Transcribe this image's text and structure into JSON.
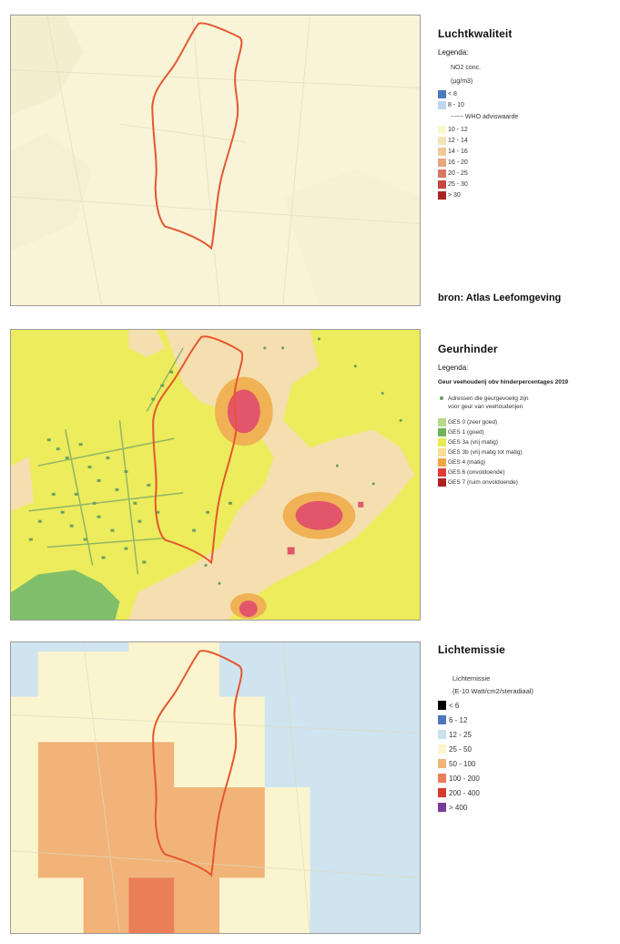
{
  "air_quality": {
    "title": "Luchtkwaliteit",
    "legend_label": "Legenda:",
    "legend_subtitle_1": "NO2 conc.",
    "legend_subtitle_2": "(µg/m3)",
    "who_note": "------ WHO adviswaarde",
    "classes": [
      {
        "label": "< 8",
        "color": "#4b7bbf"
      },
      {
        "label": "8 - 10",
        "color": "#bcd7ee"
      },
      {
        "label": "10 - 12",
        "color": "#fbf6cf"
      },
      {
        "label": "12 - 14",
        "color": "#f5e4b8"
      },
      {
        "label": "14 - 16",
        "color": "#f0c897"
      },
      {
        "label": "16 - 20",
        "color": "#e8a57e"
      },
      {
        "label": "20 - 25",
        "color": "#d87762"
      },
      {
        "label": "25 - 30",
        "color": "#c5473f"
      },
      {
        "label": "> 30",
        "color": "#a82525"
      }
    ]
  },
  "source": "bron: Atlas Leefomgeving",
  "odour": {
    "title": "Geurhinder",
    "legend_label": "Legenda:",
    "legend_subtitle": "Geur veehouderij obv hinderpercentages 2019",
    "dot_label_1": "Adressen die geurgevoelig zijn",
    "dot_label_2": "voor geur van veehouderijen",
    "classes": [
      {
        "label": "GES 0 (zeer goed)",
        "color": "#b6da8a"
      },
      {
        "label": "GES 1 (goed)",
        "color": "#6fb45a"
      },
      {
        "label": "GES 3a (vrij matig)",
        "color": "#eaea55"
      },
      {
        "label": "GES 3b (vrij matig tot matig)",
        "color": "#f7dc96"
      },
      {
        "label": "GES 4 (matig)",
        "color": "#f0a640"
      },
      {
        "label": "GES 6 (onvoldoende)",
        "color": "#e03a3a"
      },
      {
        "label": "GES 7 (ruim onvoldoende)",
        "color": "#b02020"
      }
    ]
  },
  "light": {
    "title": "Lichtemissie",
    "legend_subtitle_1": "Lichtemissie",
    "legend_subtitle_2": "(E-10 Watt/cm2/steradiaal)",
    "classes": [
      {
        "label": "< 6",
        "color": "#000000"
      },
      {
        "label": "6 - 12",
        "color": "#4e76be"
      },
      {
        "label": "12 - 25",
        "color": "#c9e3ef"
      },
      {
        "label": "25 - 50",
        "color": "#fbf5cf"
      },
      {
        "label": "50 - 100",
        "color": "#f1b378"
      },
      {
        "label": "100 - 200",
        "color": "#ea7e55"
      },
      {
        "label": "200 - 400",
        "color": "#d73a2e"
      },
      {
        "label": "> 400",
        "color": "#7a3a98"
      }
    ]
  },
  "colors": {
    "boundary": "#e4572e",
    "odour_dot": "#6a9a5c"
  }
}
